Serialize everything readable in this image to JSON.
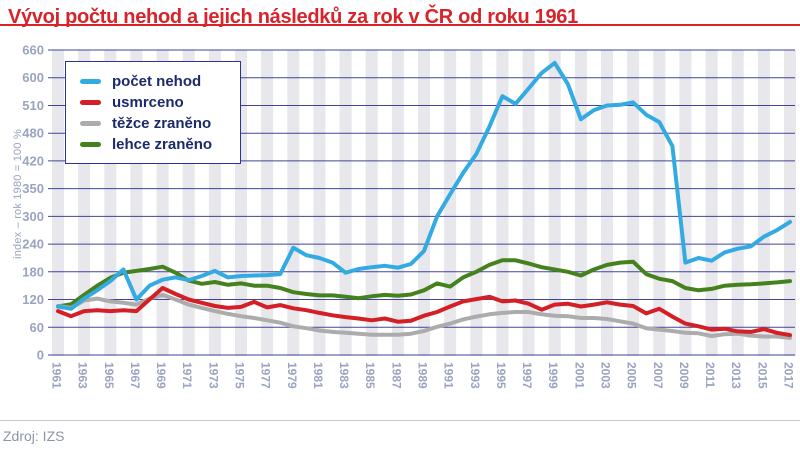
{
  "title": "Vývoj počtu nehod a jejich následků za rok v ČR od roku 1961",
  "source": "Zdroj: IZS",
  "y_axis_title": "index – rok 1980 = 100 %",
  "colors": {
    "title_accent": "#d8232a",
    "grid": "#2e3192",
    "tick_text": "#9aa3c0",
    "stripe": "#e7e7ec",
    "legend_text": "#1b2a6b",
    "legend_border": "#2e3192",
    "source_text": "#8f94a9",
    "divider": "#c9c9d4"
  },
  "legend": {
    "items": [
      {
        "label": "počet nehod",
        "color": "#33abe2"
      },
      {
        "label": "usmrceno",
        "color": "#d41f26"
      },
      {
        "label": "těžce zraněno",
        "color": "#acacac"
      },
      {
        "label": "lehce zraněno",
        "color": "#45821d"
      }
    ]
  },
  "chart_data": {
    "type": "line",
    "title": "Vývoj počtu nehod a jejich následků za rok v ČR od roku 1961",
    "xlabel": "",
    "ylabel": "index – rok 1980 = 100 %",
    "x_range": [
      1961,
      2017
    ],
    "x_tick_labels": [
      1961,
      1963,
      1965,
      1967,
      1969,
      1971,
      1973,
      1975,
      1977,
      1979,
      1981,
      1983,
      1985,
      1987,
      1989,
      1991,
      1993,
      1995,
      1997,
      1999,
      2001,
      2003,
      2005,
      2007,
      2009,
      2011,
      2013,
      2015,
      2017
    ],
    "y_ticks_as_printed": [
      0,
      60,
      120,
      180,
      240,
      300,
      350,
      420,
      480,
      510,
      600,
      660
    ],
    "grid": "horizontal, with light vertical stripes on labeled years",
    "legend_position": "upper left, boxed",
    "x": [
      1961,
      1962,
      1963,
      1964,
      1965,
      1966,
      1967,
      1968,
      1969,
      1970,
      1971,
      1972,
      1973,
      1974,
      1975,
      1976,
      1977,
      1978,
      1979,
      1980,
      1981,
      1982,
      1983,
      1984,
      1985,
      1986,
      1987,
      1988,
      1989,
      1990,
      1991,
      1992,
      1993,
      1994,
      1995,
      1996,
      1997,
      1998,
      1999,
      2000,
      2001,
      2002,
      2003,
      2004,
      2005,
      2006,
      2007,
      2008,
      2009,
      2010,
      2011,
      2012,
      2013,
      2014,
      2015,
      2016,
      2017
    ],
    "series": [
      {
        "name": "počet nehod",
        "color": "#33abe2",
        "values": [
          105,
          100,
          122,
          140,
          160,
          185,
          120,
          150,
          163,
          168,
          162,
          171,
          182,
          168,
          171,
          172,
          173,
          175,
          232,
          216,
          210,
          200,
          178,
          186,
          190,
          193,
          189,
          197,
          225,
          300,
          340,
          390,
          435,
          487,
          540,
          515,
          565,
          610,
          632,
          580,
          495,
          505,
          510,
          512,
          520,
          500,
          492,
          452,
          200,
          210,
          204,
          222,
          230,
          235,
          256,
          270,
          288
        ]
      },
      {
        "name": "usmrceno",
        "color": "#d41f26",
        "values": [
          95,
          84,
          95,
          97,
          95,
          97,
          95,
          120,
          145,
          132,
          120,
          113,
          106,
          102,
          104,
          115,
          103,
          108,
          101,
          97,
          91,
          86,
          82,
          79,
          75,
          79,
          72,
          74,
          85,
          93,
          105,
          116,
          121,
          126,
          116,
          118,
          111,
          98,
          109,
          111,
          105,
          109,
          114,
          109,
          106,
          90,
          100,
          83,
          68,
          62,
          55,
          57,
          51,
          50,
          56,
          48,
          43
        ]
      },
      {
        "name": "těžce zraněno",
        "color": "#acacac",
        "values": [
          106,
          102,
          118,
          122,
          116,
          113,
          109,
          122,
          130,
          120,
          109,
          102,
          95,
          89,
          84,
          80,
          75,
          70,
          62,
          58,
          53,
          50,
          48,
          46,
          44,
          44,
          44,
          46,
          52,
          61,
          68,
          77,
          83,
          88,
          91,
          93,
          93,
          88,
          85,
          84,
          80,
          80,
          78,
          73,
          68,
          58,
          55,
          52,
          48,
          47,
          41,
          45,
          46,
          42,
          40,
          40,
          37
        ]
      },
      {
        "name": "lehce zraněno",
        "color": "#45821d",
        "values": [
          105,
          110,
          130,
          150,
          167,
          178,
          182,
          186,
          191,
          178,
          161,
          154,
          158,
          152,
          155,
          150,
          150,
          145,
          136,
          132,
          129,
          129,
          126,
          123,
          127,
          130,
          128,
          131,
          140,
          155,
          148,
          168,
          180,
          195,
          205,
          205,
          198,
          190,
          185,
          180,
          172,
          185,
          195,
          200,
          202,
          175,
          165,
          160,
          145,
          140,
          143,
          150,
          152,
          153,
          155,
          157,
          160
        ]
      }
    ]
  }
}
